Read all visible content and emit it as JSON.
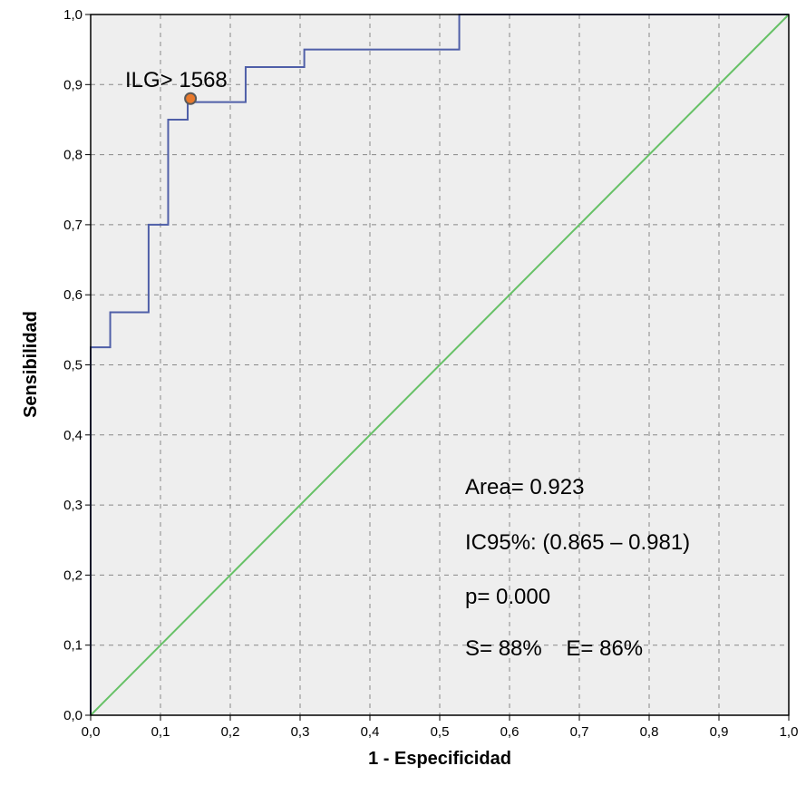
{
  "chart_data": {
    "type": "line",
    "xlabel": "1 - Especificidad",
    "ylabel": "Sensibilidad",
    "xlim": [
      0,
      1
    ],
    "ylim": [
      0,
      1
    ],
    "x_ticks": [
      "0,0",
      "0,1",
      "0,2",
      "0,3",
      "0,4",
      "0,5",
      "0,6",
      "0,7",
      "0,8",
      "0,9",
      "1,0"
    ],
    "y_ticks": [
      "0,0",
      "0,1",
      "0,2",
      "0,3",
      "0,4",
      "0,5",
      "0,6",
      "0,7",
      "0,8",
      "0,9",
      "1,0"
    ],
    "grid": true,
    "series": [
      {
        "color": "#4f5fa8",
        "style": "step",
        "x": [
          0.0,
          0.0,
          0.028,
          0.028,
          0.083,
          0.083,
          0.111,
          0.111,
          0.139,
          0.139,
          0.222,
          0.222,
          0.306,
          0.306,
          0.528,
          0.528,
          1.0
        ],
        "y": [
          0.0,
          0.525,
          0.525,
          0.575,
          0.575,
          0.7,
          0.7,
          0.85,
          0.85,
          0.875,
          0.875,
          0.925,
          0.925,
          0.95,
          0.95,
          1.0,
          1.0
        ]
      },
      {
        "color": "#66c166",
        "style": "line",
        "x": [
          0,
          1
        ],
        "y": [
          0,
          1
        ]
      }
    ],
    "highlight_point": {
      "x": 0.143,
      "y": 0.88,
      "label": "ILG> 1568",
      "color": "#e8792c"
    },
    "annotations": [
      "Area= 0.923",
      "IC95%: (0.865 – 0.981)",
      "p= 0.000",
      "S= 88%    E= 86%"
    ],
    "plot_background": "#eeeeee"
  }
}
